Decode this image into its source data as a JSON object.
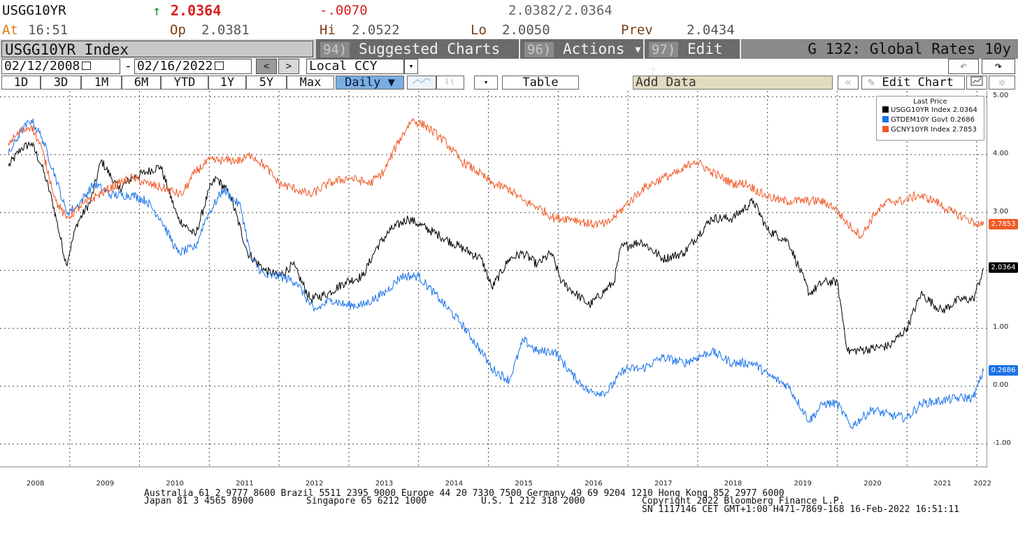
{
  "quote": {
    "ticker": "USGG10YR",
    "arrow": "↑",
    "last": "2.0364",
    "change": "-.0070",
    "bid_ask": "2.0382/2.0364",
    "at_label": "At",
    "time": "16:51",
    "open_label": "Op",
    "open": "2.0381",
    "high_label": "Hi",
    "high": "2.0522",
    "low_label": "Lo",
    "low": "2.0050",
    "prev_label": "Prev",
    "prev": "2.0434"
  },
  "toolbar": {
    "security": "USGG10YR Index",
    "menus": [
      {
        "num": "94)",
        "label": "Suggested Charts"
      },
      {
        "num": "96)",
        "label": "Actions ▾"
      },
      {
        "num": "97)",
        "label": "Edit ▾"
      }
    ],
    "chart_title": "G 132: Global Rates 10y"
  },
  "range": {
    "start": "02/12/2008",
    "dash": "-",
    "end": "02/16/2022",
    "prev": "<",
    "next": ">",
    "currency": "Local CCY",
    "undo": "↶",
    "redo": "↷"
  },
  "periods": [
    "1D",
    "3D",
    "1M",
    "6M",
    "YTD",
    "1Y",
    "5Y",
    "Max"
  ],
  "controls": {
    "frequency": "Daily ▼",
    "table": "Table",
    "add_data": "Add Data",
    "edit_chart": "Edit Chart",
    "dd": "▾"
  },
  "legend": {
    "title": "Last Price",
    "items": [
      {
        "label": "USGG10YR Index 2.0364",
        "color": "#000000"
      },
      {
        "label": "GTDEM10Y Govt  0.2686",
        "color": "#1a73e8"
      },
      {
        "label": "GCNY10YR Index 2.7853",
        "color": "#f05a28"
      }
    ]
  },
  "chart_data": {
    "type": "line",
    "x_years": [
      "2008",
      "2009",
      "2010",
      "2011",
      "2012",
      "2013",
      "2014",
      "2015",
      "2016",
      "2017",
      "2018",
      "2019",
      "2020",
      "2021",
      "2022"
    ],
    "y_ticks": [
      "5.00",
      "4.00",
      "3.00",
      "2.00",
      "1.00",
      "0.00",
      "-1.00"
    ],
    "ylim": [
      -1.4,
      5.1
    ],
    "grid": true,
    "legend_position": "top-right",
    "series": [
      {
        "name": "USGG10YR Index",
        "color": "#000000",
        "last": "2.0364",
        "points": [
          [
            2008.12,
            3.8
          ],
          [
            2008.3,
            4.1
          ],
          [
            2008.45,
            4.2
          ],
          [
            2008.6,
            3.8
          ],
          [
            2008.75,
            3.2
          ],
          [
            2008.95,
            2.1
          ],
          [
            2009.1,
            2.8
          ],
          [
            2009.3,
            3.2
          ],
          [
            2009.45,
            3.9
          ],
          [
            2009.7,
            3.4
          ],
          [
            2009.9,
            3.6
          ],
          [
            2010.1,
            3.7
          ],
          [
            2010.3,
            3.8
          ],
          [
            2010.55,
            2.9
          ],
          [
            2010.8,
            2.6
          ],
          [
            2011.0,
            3.4
          ],
          [
            2011.1,
            3.6
          ],
          [
            2011.3,
            3.3
          ],
          [
            2011.55,
            2.3
          ],
          [
            2011.8,
            2.0
          ],
          [
            2012.0,
            1.9
          ],
          [
            2012.2,
            2.1
          ],
          [
            2012.45,
            1.5
          ],
          [
            2012.7,
            1.6
          ],
          [
            2012.95,
            1.8
          ],
          [
            2013.2,
            1.9
          ],
          [
            2013.4,
            2.4
          ],
          [
            2013.6,
            2.7
          ],
          [
            2013.85,
            2.9
          ],
          [
            2014.0,
            2.8
          ],
          [
            2014.3,
            2.6
          ],
          [
            2014.6,
            2.4
          ],
          [
            2014.9,
            2.2
          ],
          [
            2015.05,
            1.7
          ],
          [
            2015.3,
            2.2
          ],
          [
            2015.5,
            2.3
          ],
          [
            2015.7,
            2.1
          ],
          [
            2015.9,
            2.3
          ],
          [
            2016.05,
            1.8
          ],
          [
            2016.45,
            1.4
          ],
          [
            2016.8,
            1.8
          ],
          [
            2016.9,
            2.4
          ],
          [
            2017.2,
            2.5
          ],
          [
            2017.5,
            2.2
          ],
          [
            2017.8,
            2.3
          ],
          [
            2018.0,
            2.6
          ],
          [
            2018.2,
            2.9
          ],
          [
            2018.5,
            2.9
          ],
          [
            2018.8,
            3.2
          ],
          [
            2019.0,
            2.7
          ],
          [
            2019.3,
            2.5
          ],
          [
            2019.6,
            1.6
          ],
          [
            2019.8,
            1.8
          ],
          [
            2020.0,
            1.8
          ],
          [
            2020.15,
            0.6
          ],
          [
            2020.5,
            0.65
          ],
          [
            2020.75,
            0.7
          ],
          [
            2021.0,
            1.0
          ],
          [
            2021.2,
            1.6
          ],
          [
            2021.5,
            1.3
          ],
          [
            2021.75,
            1.5
          ],
          [
            2021.95,
            1.5
          ],
          [
            2022.1,
            2.04
          ]
        ]
      },
      {
        "name": "GTDEM10Y Govt",
        "color": "#1a73e8",
        "last": "0.2686",
        "points": [
          [
            2008.12,
            4.0
          ],
          [
            2008.3,
            4.4
          ],
          [
            2008.45,
            4.6
          ],
          [
            2008.6,
            4.3
          ],
          [
            2008.8,
            3.6
          ],
          [
            2008.95,
            3.0
          ],
          [
            2009.1,
            3.1
          ],
          [
            2009.35,
            3.5
          ],
          [
            2009.6,
            3.3
          ],
          [
            2009.9,
            3.3
          ],
          [
            2010.1,
            3.2
          ],
          [
            2010.3,
            2.9
          ],
          [
            2010.55,
            2.3
          ],
          [
            2010.8,
            2.4
          ],
          [
            2010.95,
            2.9
          ],
          [
            2011.2,
            3.4
          ],
          [
            2011.45,
            3.1
          ],
          [
            2011.6,
            2.2
          ],
          [
            2011.8,
            1.9
          ],
          [
            2012.0,
            1.9
          ],
          [
            2012.25,
            1.8
          ],
          [
            2012.5,
            1.3
          ],
          [
            2012.75,
            1.5
          ],
          [
            2012.95,
            1.4
          ],
          [
            2013.2,
            1.4
          ],
          [
            2013.5,
            1.6
          ],
          [
            2013.75,
            1.9
          ],
          [
            2014.0,
            1.9
          ],
          [
            2014.3,
            1.5
          ],
          [
            2014.6,
            1.1
          ],
          [
            2014.9,
            0.6
          ],
          [
            2015.05,
            0.3
          ],
          [
            2015.3,
            0.1
          ],
          [
            2015.5,
            0.8
          ],
          [
            2015.7,
            0.6
          ],
          [
            2015.95,
            0.6
          ],
          [
            2016.2,
            0.2
          ],
          [
            2016.45,
            -0.1
          ],
          [
            2016.7,
            -0.1
          ],
          [
            2016.95,
            0.3
          ],
          [
            2017.2,
            0.3
          ],
          [
            2017.5,
            0.5
          ],
          [
            2017.8,
            0.4
          ],
          [
            2018.0,
            0.5
          ],
          [
            2018.2,
            0.6
          ],
          [
            2018.5,
            0.4
          ],
          [
            2018.8,
            0.4
          ],
          [
            2019.0,
            0.2
          ],
          [
            2019.3,
            0.0
          ],
          [
            2019.6,
            -0.6
          ],
          [
            2019.8,
            -0.3
          ],
          [
            2020.0,
            -0.3
          ],
          [
            2020.2,
            -0.7
          ],
          [
            2020.5,
            -0.4
          ],
          [
            2020.75,
            -0.5
          ],
          [
            2021.0,
            -0.55
          ],
          [
            2021.2,
            -0.3
          ],
          [
            2021.5,
            -0.25
          ],
          [
            2021.75,
            -0.2
          ],
          [
            2021.95,
            -0.2
          ],
          [
            2022.1,
            0.27
          ]
        ]
      },
      {
        "name": "GCNY10YR Index",
        "color": "#f05a28",
        "last": "2.7853",
        "points": [
          [
            2008.12,
            4.2
          ],
          [
            2008.3,
            4.4
          ],
          [
            2008.45,
            4.5
          ],
          [
            2008.6,
            4.1
          ],
          [
            2008.8,
            3.2
          ],
          [
            2008.95,
            2.9
          ],
          [
            2009.15,
            3.1
          ],
          [
            2009.4,
            3.3
          ],
          [
            2009.7,
            3.5
          ],
          [
            2009.9,
            3.6
          ],
          [
            2010.1,
            3.5
          ],
          [
            2010.4,
            3.4
          ],
          [
            2010.6,
            3.3
          ],
          [
            2010.8,
            3.7
          ],
          [
            2011.0,
            3.9
          ],
          [
            2011.2,
            3.9
          ],
          [
            2011.45,
            3.9
          ],
          [
            2011.6,
            4.0
          ],
          [
            2011.8,
            3.8
          ],
          [
            2012.0,
            3.5
          ],
          [
            2012.25,
            3.4
          ],
          [
            2012.45,
            3.3
          ],
          [
            2012.7,
            3.5
          ],
          [
            2013.0,
            3.6
          ],
          [
            2013.3,
            3.5
          ],
          [
            2013.5,
            3.7
          ],
          [
            2013.7,
            4.2
          ],
          [
            2013.9,
            4.6
          ],
          [
            2014.1,
            4.5
          ],
          [
            2014.4,
            4.2
          ],
          [
            2014.6,
            3.9
          ],
          [
            2014.85,
            3.7
          ],
          [
            2015.05,
            3.5
          ],
          [
            2015.3,
            3.4
          ],
          [
            2015.5,
            3.2
          ],
          [
            2015.7,
            3.1
          ],
          [
            2015.95,
            2.9
          ],
          [
            2016.2,
            2.9
          ],
          [
            2016.45,
            2.8
          ],
          [
            2016.7,
            2.8
          ],
          [
            2016.95,
            3.1
          ],
          [
            2017.2,
            3.4
          ],
          [
            2017.5,
            3.6
          ],
          [
            2017.75,
            3.7
          ],
          [
            2017.95,
            3.9
          ],
          [
            2018.2,
            3.7
          ],
          [
            2018.5,
            3.5
          ],
          [
            2018.7,
            3.5
          ],
          [
            2018.95,
            3.3
          ],
          [
            2019.2,
            3.2
          ],
          [
            2019.5,
            3.2
          ],
          [
            2019.75,
            3.2
          ],
          [
            2019.95,
            3.1
          ],
          [
            2020.15,
            2.8
          ],
          [
            2020.35,
            2.6
          ],
          [
            2020.55,
            3.0
          ],
          [
            2020.75,
            3.2
          ],
          [
            2020.95,
            3.2
          ],
          [
            2021.15,
            3.3
          ],
          [
            2021.4,
            3.2
          ],
          [
            2021.65,
            3.0
          ],
          [
            2021.85,
            2.9
          ],
          [
            2022.0,
            2.8
          ],
          [
            2022.1,
            2.79
          ]
        ]
      }
    ]
  },
  "footer": {
    "line1": "Australia 61 2 9777 8600 Brazil 5511 2395 9000 Europe 44 20 7330 7500 Germany 49 69 9204 1210 Hong Kong 852 2977 6000",
    "line2a": "Japan 81 3 4565 8900",
    "line2b": "Singapore 65 6212 1000",
    "line2c": "U.S. 1 212 318 2000",
    "line2d": "Copyright 2022 Bloomberg Finance L.P.",
    "line3": "SN 1117146 CET  GMT+1:00 H471-7869-168 16-Feb-2022 16:51:11"
  }
}
